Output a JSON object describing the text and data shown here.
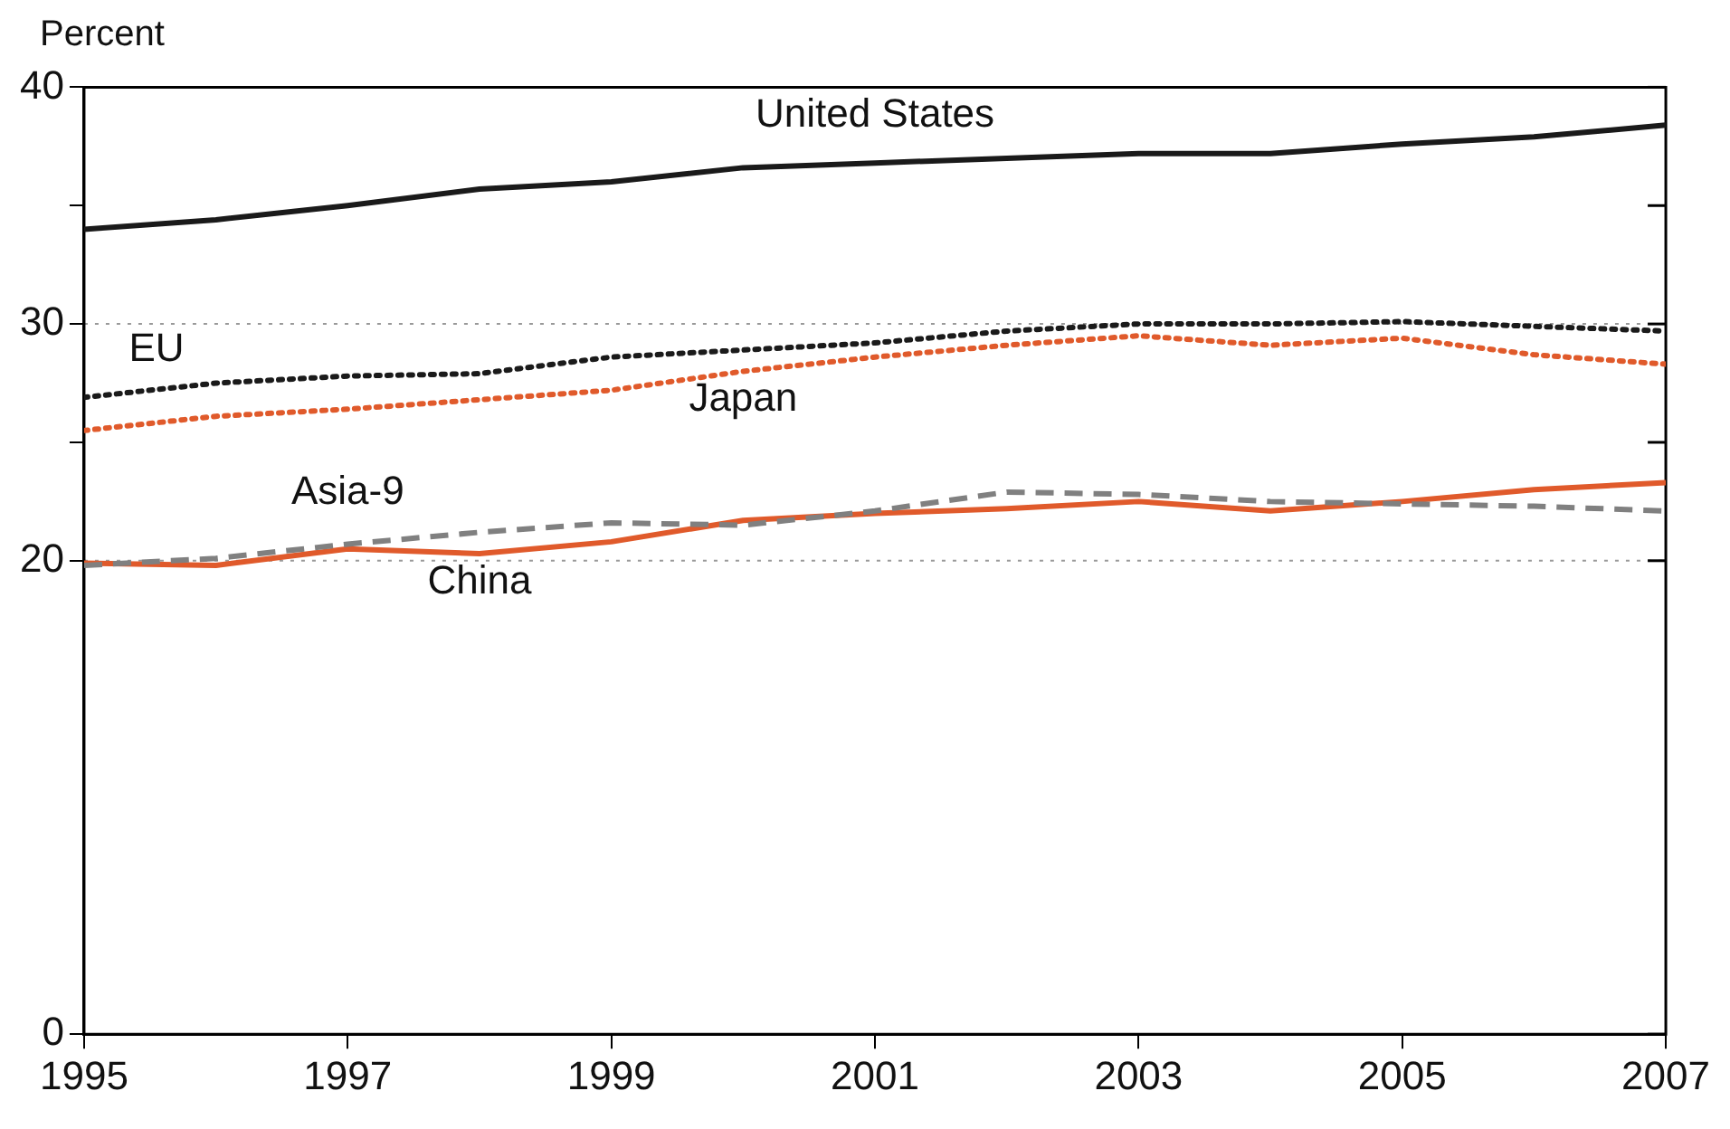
{
  "chart_data": {
    "type": "line",
    "ylabel": "Percent",
    "x": [
      1995,
      1996,
      1997,
      1998,
      1999,
      2000,
      2001,
      2002,
      2003,
      2004,
      2005,
      2006,
      2007
    ],
    "xlim": [
      1995,
      2007
    ],
    "xticks": [
      1995,
      1997,
      1999,
      2001,
      2003,
      2005,
      2007
    ],
    "ylim": [
      0,
      40
    ],
    "yticks": [
      0,
      20,
      {
        "value": 25,
        "label": null
      },
      30,
      {
        "value": 35,
        "label": null
      },
      40
    ],
    "grid": false,
    "legend": false,
    "marker": "none",
    "ref_lines": [
      {
        "axis": "y",
        "value": 20,
        "color": "#999999",
        "line_style": "dotted"
      },
      {
        "axis": "y",
        "value": 30,
        "color": "#999999",
        "line_style": "dotted"
      }
    ],
    "series": [
      {
        "name": "United States",
        "color": "#1a1a1a",
        "line_style": "solid",
        "values": [
          34.0,
          34.4,
          35.0,
          35.7,
          36.0,
          36.6,
          36.8,
          37.0,
          37.2,
          37.2,
          37.6,
          37.9,
          38.4
        ]
      },
      {
        "name": "EU",
        "color": "#1a1a1a",
        "line_style": "dotted",
        "values": [
          26.9,
          27.5,
          27.8,
          27.9,
          28.6,
          28.9,
          29.2,
          29.7,
          30.0,
          30.0,
          30.1,
          29.9,
          29.7
        ]
      },
      {
        "name": "Japan",
        "color": "#e05a2b",
        "line_style": "dotted",
        "values": [
          25.5,
          26.1,
          26.4,
          26.8,
          27.2,
          28.0,
          28.6,
          29.1,
          29.5,
          29.1,
          29.4,
          28.7,
          28.3
        ]
      },
      {
        "name": "Asia-9",
        "color": "#808080",
        "line_style": "dashed",
        "values": [
          19.8,
          20.1,
          20.7,
          21.2,
          21.6,
          21.5,
          22.1,
          22.9,
          22.8,
          22.5,
          22.4,
          22.3,
          22.1
        ]
      },
      {
        "name": "China",
        "color": "#e05a2b",
        "line_style": "solid",
        "values": [
          19.9,
          19.8,
          20.5,
          20.3,
          20.8,
          21.7,
          22.0,
          22.2,
          22.5,
          22.1,
          22.5,
          23.0,
          23.3
        ]
      }
    ]
  }
}
